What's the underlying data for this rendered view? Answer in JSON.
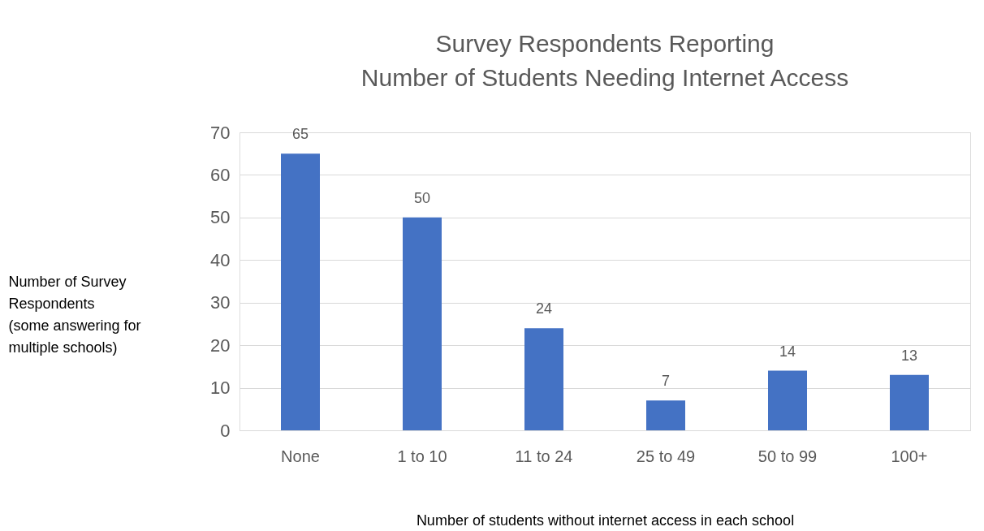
{
  "chart_data": {
    "type": "bar",
    "title": "Survey Respondents Reporting\nNumber of Students Needing Internet Access",
    "xlabel": "Number of students without internet access in each school",
    "ylabel": "Number of Survey\nRespondents\n(some answering for\nmultiple schools)",
    "categories": [
      "None",
      "1 to 10",
      "11 to 24",
      "25 to 49",
      "50 to 99",
      "100+"
    ],
    "values": [
      65,
      50,
      24,
      7,
      14,
      13
    ],
    "color": "#4472c4",
    "ylim": [
      0,
      70
    ],
    "yticks": [
      0,
      10,
      20,
      30,
      40,
      50,
      60,
      70
    ],
    "grid": "y",
    "data_labels": true
  }
}
